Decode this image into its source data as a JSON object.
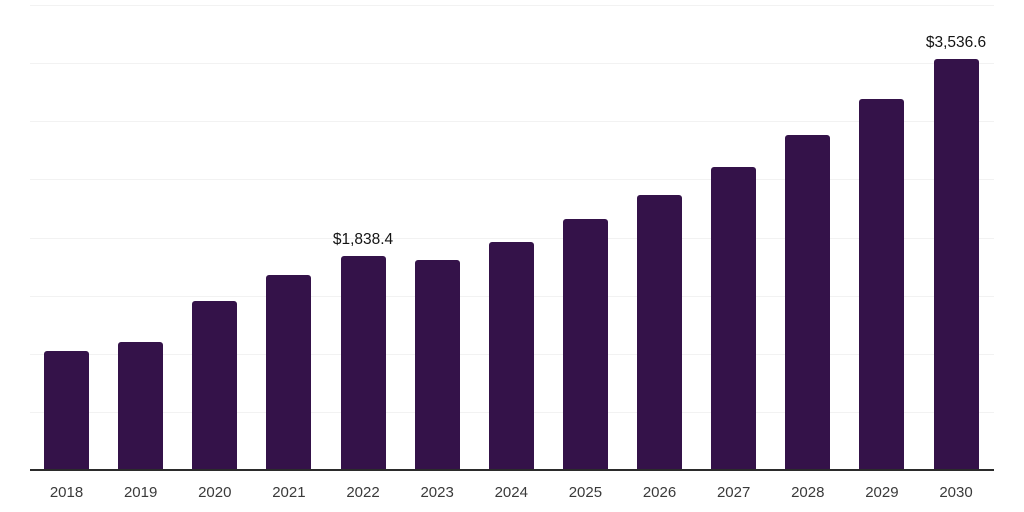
{
  "chart_data": {
    "type": "bar",
    "title": "",
    "xlabel": "",
    "ylabel": "",
    "categories": [
      "2018",
      "2019",
      "2020",
      "2021",
      "2022",
      "2023",
      "2024",
      "2025",
      "2026",
      "2027",
      "2028",
      "2029",
      "2030"
    ],
    "values": [
      1020,
      1105,
      1450,
      1680,
      1838.4,
      1805,
      1965,
      2155,
      2370,
      2605,
      2880,
      3195,
      3536.6
    ],
    "value_labels": [
      "",
      "",
      "",
      "",
      "$1,838.4",
      "",
      "",
      "",
      "",
      "",
      "",
      "",
      "$3,536.6"
    ],
    "ylim": [
      0,
      4000
    ],
    "gridline_step": 500,
    "grid": "horizontal-only",
    "y_tick_labels_shown": false,
    "legend_position": "none",
    "colors": {
      "bar": "#341249",
      "gridline": "#f2f2f2",
      "axis_line": "#2b2b2b",
      "value_label_text": "#141414",
      "tick_label_text": "#3a3a3a",
      "background": "#ffffff"
    }
  }
}
